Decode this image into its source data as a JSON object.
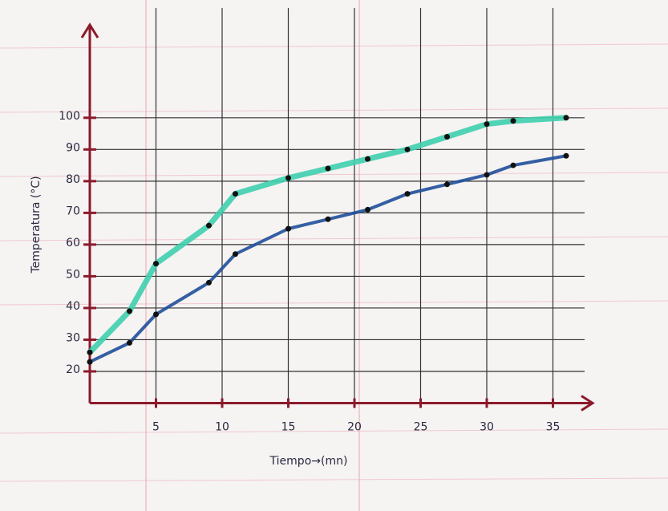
{
  "chart_data": {
    "type": "line",
    "xlabel": "Tiempo→(mn)",
    "ylabel": "Temperatura (°C)",
    "x": [
      0,
      3,
      5,
      9,
      11,
      15,
      18,
      21,
      24,
      27,
      30,
      32,
      36
    ],
    "series": [
      {
        "color": "#3fcfae",
        "values": [
          26,
          39,
          54,
          66,
          76,
          81,
          84,
          87,
          90,
          94,
          98,
          99,
          100
        ]
      },
      {
        "color": "#1f4f9a",
        "values": [
          23,
          29,
          38,
          48,
          57,
          65,
          68,
          71,
          76,
          79,
          82,
          85,
          88
        ]
      }
    ],
    "xlim": [
      0,
      38
    ],
    "xticks": [
      5,
      10,
      15,
      20,
      25,
      30,
      35
    ],
    "ylim": [
      10,
      125
    ],
    "yticks": [
      20,
      30,
      40,
      50,
      60,
      70,
      80,
      90,
      100
    ],
    "grid": true
  }
}
